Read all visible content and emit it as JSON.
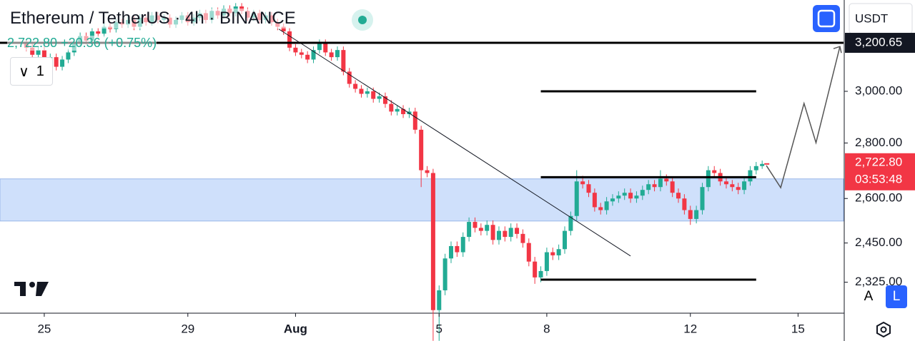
{
  "chart_data": {
    "type": "candlestick",
    "title": "Ethereum / TetherUS · 4h · BINANCE",
    "subtitle": "2,722.80 +20.36 (+0.75%)",
    "indicator_count": "1",
    "currency": "USDT",
    "auto_button": "A",
    "log_button": "L",
    "log_scale": true,
    "up_color": "#22ab94",
    "down_color": "#f23645",
    "xlim": [
      -7.4,
      133.6
    ],
    "ylim": [
      2233,
      3389
    ],
    "xticks": [
      {
        "value": 0,
        "label": "25"
      },
      {
        "value": 24,
        "label": "29"
      },
      {
        "value": 42,
        "label": "Aug"
      },
      {
        "value": 66,
        "label": "5"
      },
      {
        "value": 84,
        "label": "8"
      },
      {
        "value": 108,
        "label": "12"
      },
      {
        "value": 126,
        "label": "15"
      }
    ],
    "yticks": [
      {
        "value": 3000,
        "label": "3,000.00"
      },
      {
        "value": 2800,
        "label": "2,800.00"
      },
      {
        "value": 2600,
        "label": "2,600.00"
      },
      {
        "value": 2450,
        "label": "2,450.00"
      },
      {
        "value": 2325,
        "label": "2,325.00"
      }
    ],
    "first_index": -3,
    "open": [
      3200,
      3180,
      3150,
      3170,
      3120,
      3140,
      3100,
      3130,
      3160,
      3200,
      3230,
      3210,
      3250,
      3240,
      3270,
      3260,
      3290,
      3280,
      3300,
      3270,
      3310,
      3290,
      3320,
      3300,
      3310,
      3280,
      3300,
      3320,
      3290,
      3310,
      3330,
      3300,
      3340,
      3320,
      3350,
      3330,
      3360,
      3340,
      3310,
      3330,
      3300,
      3320,
      3290,
      3270,
      3250,
      3180,
      3160,
      3150,
      3130,
      3170,
      3200,
      3160,
      3140,
      3170,
      3080,
      3030,
      3010,
      2990,
      3000,
      2970,
      2980,
      2950,
      2920,
      2930,
      2910,
      2920,
      2850,
      2700,
      2690,
      2240,
      2300,
      2400,
      2440,
      2420,
      2470,
      2520,
      2500,
      2490,
      2510,
      2460,
      2490,
      2470,
      2500,
      2480,
      2450,
      2390,
      2340,
      2360,
      2420,
      2410,
      2430,
      2490,
      2540,
      2660,
      2650,
      2620,
      2570,
      2560,
      2590,
      2600,
      2610,
      2620,
      2600,
      2610,
      2630,
      2650,
      2640,
      2670,
      2660,
      2620,
      2600,
      2560,
      2530,
      2560,
      2640,
      2700,
      2690,
      2660,
      2650,
      2640,
      2630,
      2660,
      2700,
      2715
    ],
    "high": [
      3215,
      3195,
      3185,
      3185,
      3155,
      3155,
      3145,
      3175,
      3215,
      3245,
      3245,
      3265,
      3265,
      3285,
      3285,
      3305,
      3305,
      3315,
      3315,
      3325,
      3325,
      3335,
      3335,
      3325,
      3325,
      3315,
      3335,
      3335,
      3325,
      3345,
      3345,
      3355,
      3355,
      3365,
      3365,
      3375,
      3375,
      3355,
      3345,
      3345,
      3335,
      3335,
      3305,
      3285,
      3265,
      3195,
      3175,
      3165,
      3185,
      3215,
      3215,
      3175,
      3185,
      3185,
      3095,
      3045,
      3025,
      3015,
      3015,
      2995,
      2995,
      2965,
      2945,
      2945,
      2935,
      2935,
      2865,
      2715,
      2705,
      2315,
      2415,
      2455,
      2455,
      2485,
      2535,
      2535,
      2515,
      2525,
      2525,
      2505,
      2505,
      2515,
      2515,
      2495,
      2465,
      2405,
      2375,
      2435,
      2435,
      2445,
      2505,
      2555,
      2700,
      2680,
      2665,
      2635,
      2585,
      2605,
      2615,
      2625,
      2635,
      2635,
      2625,
      2645,
      2665,
      2665,
      2700,
      2685,
      2675,
      2635,
      2615,
      2575,
      2575,
      2655,
      2715,
      2715,
      2705,
      2675,
      2665,
      2655,
      2675,
      2715,
      2730,
      2735
    ],
    "low": [
      3165,
      3135,
      3135,
      3105,
      3105,
      3085,
      3085,
      3115,
      3145,
      3185,
      3195,
      3195,
      3225,
      3225,
      3245,
      3245,
      3265,
      3265,
      3255,
      3255,
      3275,
      3275,
      3285,
      3285,
      3265,
      3265,
      3285,
      3275,
      3275,
      3295,
      3285,
      3285,
      3305,
      3305,
      3315,
      3315,
      3325,
      3295,
      3295,
      3285,
      3285,
      3275,
      3255,
      3235,
      3165,
      3145,
      3135,
      3115,
      3115,
      3155,
      3145,
      3125,
      3125,
      3065,
      3015,
      2995,
      2975,
      2975,
      2955,
      2955,
      2935,
      2905,
      2905,
      2895,
      2895,
      2835,
      2640,
      2675,
      2150,
      2150,
      2285,
      2385,
      2405,
      2405,
      2455,
      2485,
      2475,
      2475,
      2445,
      2445,
      2455,
      2455,
      2465,
      2435,
      2375,
      2320,
      2325,
      2345,
      2395,
      2395,
      2415,
      2475,
      2525,
      2635,
      2605,
      2555,
      2545,
      2545,
      2575,
      2585,
      2595,
      2585,
      2585,
      2595,
      2615,
      2625,
      2625,
      2645,
      2605,
      2585,
      2545,
      2510,
      2515,
      2545,
      2625,
      2675,
      2645,
      2635,
      2625,
      2615,
      2615,
      2645,
      2685,
      2705
    ],
    "close": [
      3180,
      3150,
      3170,
      3120,
      3140,
      3100,
      3130,
      3160,
      3200,
      3230,
      3210,
      3250,
      3240,
      3270,
      3260,
      3290,
      3280,
      3300,
      3270,
      3310,
      3290,
      3320,
      3300,
      3310,
      3280,
      3300,
      3320,
      3290,
      3310,
      3330,
      3300,
      3340,
      3320,
      3350,
      3330,
      3360,
      3340,
      3310,
      3330,
      3300,
      3320,
      3290,
      3270,
      3250,
      3180,
      3160,
      3150,
      3130,
      3170,
      3200,
      3160,
      3140,
      3170,
      3080,
      3030,
      3010,
      2990,
      3000,
      2970,
      2980,
      2950,
      2920,
      2930,
      2910,
      2920,
      2850,
      2700,
      2690,
      2240,
      2300,
      2400,
      2440,
      2420,
      2470,
      2520,
      2500,
      2490,
      2510,
      2460,
      2490,
      2470,
      2500,
      2480,
      2450,
      2390,
      2340,
      2360,
      2420,
      2410,
      2430,
      2490,
      2540,
      2660,
      2650,
      2620,
      2570,
      2560,
      2590,
      2600,
      2610,
      2620,
      2600,
      2610,
      2630,
      2650,
      2640,
      2670,
      2660,
      2620,
      2600,
      2560,
      2530,
      2560,
      2640,
      2700,
      2690,
      2660,
      2650,
      2640,
      2630,
      2660,
      2700,
      2715,
      2722.8
    ],
    "price_line": {
      "value": 3200.65,
      "label": "3,200.65"
    },
    "last_price": {
      "value": 2722.8,
      "label": "2,722.80",
      "countdown": "03:53:48"
    },
    "levels": [
      {
        "price": 3000,
        "x": [
          83,
          119
        ]
      },
      {
        "price": 2675,
        "x": [
          83,
          119
        ]
      },
      {
        "price": 2333,
        "x": [
          83,
          119
        ]
      }
    ],
    "zone": {
      "ylim": [
        2523,
        2669
      ],
      "color": "#cfe0fb"
    },
    "trendline": {
      "x": [
        39.2,
        98
      ],
      "y": [
        3260,
        2408
      ]
    },
    "projection": {
      "x": [
        120.7,
        123.1,
        127,
        129,
        133
      ],
      "y": [
        2717,
        2638,
        2952,
        2801,
        3185
      ]
    }
  }
}
